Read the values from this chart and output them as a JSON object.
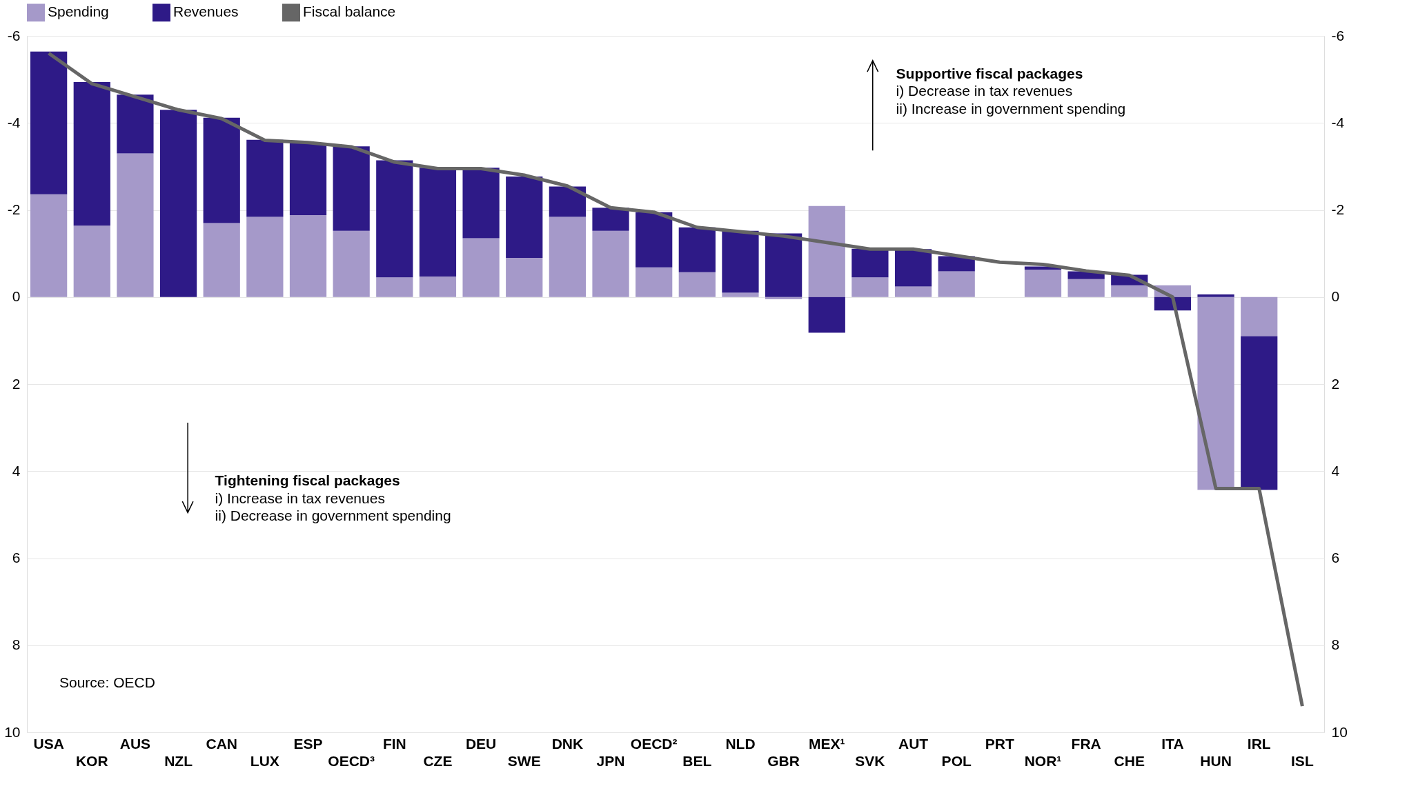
{
  "chart_data": {
    "type": "bar",
    "stacked": true,
    "categories": [
      "USA",
      "KOR",
      "AUS",
      "NZL",
      "CAN",
      "LUX",
      "ESP",
      "OECD³",
      "FIN",
      "CZE",
      "DEU",
      "SWE",
      "DNK",
      "JPN",
      "OECD²",
      "BEL",
      "NLD",
      "GBR",
      "MEX¹",
      "SVK",
      "AUT",
      "POL",
      "PRT",
      "NOR¹",
      "FRA",
      "CHE",
      "ITA",
      "HUN",
      "IRL",
      "ISL"
    ],
    "series": [
      {
        "name": "Spending",
        "color": "#a599c9",
        "values": [
          -2.36,
          -1.64,
          -3.3,
          0,
          -1.7,
          -1.84,
          -1.88,
          -1.52,
          -0.45,
          -0.47,
          -1.35,
          -0.9,
          -1.84,
          -1.52,
          -0.68,
          -0.57,
          -0.1,
          0.05,
          -2.09,
          -0.45,
          -0.24,
          -0.59,
          null,
          -0.63,
          -0.41,
          -0.27,
          -0.27,
          4.43,
          0.9,
          null
        ]
      },
      {
        "name": "Revenues",
        "color": "#2e1a87",
        "values": [
          -3.28,
          -3.3,
          -1.35,
          -4.3,
          -2.42,
          -1.77,
          -1.66,
          -1.94,
          -2.69,
          -2.5,
          -1.62,
          -1.87,
          -0.7,
          -0.53,
          -1.27,
          -1.03,
          -1.42,
          -1.46,
          0.82,
          -0.66,
          -0.86,
          -0.35,
          null,
          -0.07,
          -0.18,
          -0.24,
          0.31,
          -0.06,
          3.53,
          null
        ]
      },
      {
        "name": "Fiscal balance",
        "type": "line",
        "color": "#666666",
        "values": [
          -5.6,
          -4.9,
          -4.6,
          -4.3,
          -4.1,
          -3.6,
          -3.55,
          -3.45,
          -3.1,
          -2.95,
          -2.95,
          -2.8,
          -2.55,
          -2.05,
          -1.95,
          -1.6,
          -1.5,
          -1.4,
          -1.25,
          -1.1,
          -1.1,
          -0.95,
          -0.8,
          -0.75,
          -0.6,
          -0.5,
          0,
          4.4,
          4.4,
          9.4
        ]
      }
    ],
    "ylim": [
      10,
      -6
    ],
    "yticks": [
      -6,
      -4,
      -2,
      0,
      2,
      4,
      6,
      8,
      10
    ],
    "y2lim": [
      10,
      -6
    ],
    "y2ticks": [
      -6,
      -4,
      -2,
      0,
      2,
      4,
      6,
      8,
      10
    ],
    "grid": "y",
    "legend": "top",
    "annotations": [
      "Supportive fiscal packages",
      "i) Decrease in tax revenues",
      "ii) Increase in government spending",
      "Tightening fiscal packages",
      "i) Increase in tax revenues",
      "ii) Decrease in government spending",
      "Source: OECD"
    ]
  }
}
